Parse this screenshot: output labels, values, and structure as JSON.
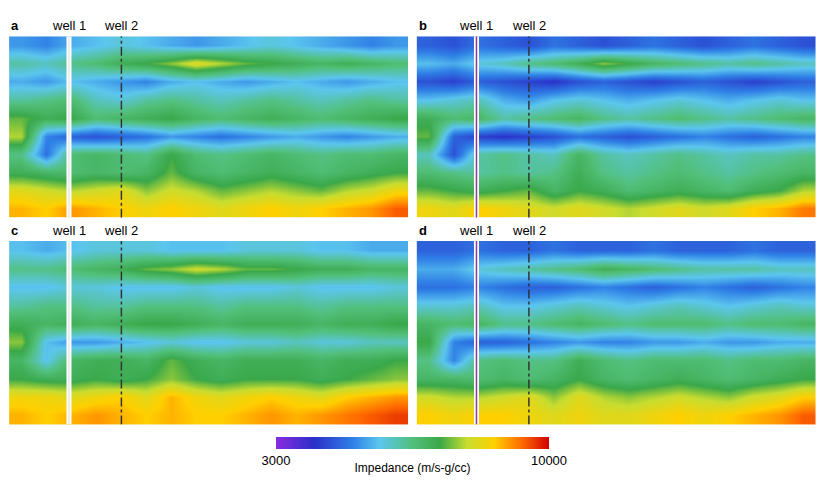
{
  "chart_data": {
    "type": "heatmap",
    "x": [
      0.5,
      1.5,
      2.5,
      3.5,
      4.5,
      5.5,
      6.5,
      7.5,
      8.5,
      9.5,
      10.5,
      11.5,
      12.5,
      13.5,
      14.5,
      15.5
    ],
    "y": [
      0.5,
      1.5,
      2.5,
      3.5,
      4.5,
      5.5,
      6.5,
      7.5,
      8.5,
      9.5
    ],
    "xlim": [
      0,
      16
    ],
    "ylim": [
      10,
      0
    ],
    "tick_labels": false,
    "wells": [
      {
        "name": "well 1",
        "x": 2.4
      },
      {
        "name": "well 2",
        "x": 4.5
      }
    ],
    "colorbar": {
      "title": "Impedance (m/s-g/cc)",
      "range": [
        3000,
        10000
      ],
      "ticks": [
        3000,
        10000
      ]
    },
    "panels": [
      {
        "label": "a",
        "z": [
          [
            5200,
            5000,
            5400,
            5600,
            5800,
            5600,
            5400,
            5200,
            5400,
            5600,
            5800,
            5600,
            5400,
            5200,
            5000,
            5200
          ],
          [
            6200,
            6000,
            6400,
            6600,
            7000,
            7200,
            7600,
            8200,
            7800,
            7400,
            7200,
            7000,
            6800,
            7000,
            6800,
            6600
          ],
          [
            5400,
            5200,
            5600,
            5400,
            5200,
            5000,
            5400,
            5600,
            5400,
            5200,
            5400,
            5600,
            5400,
            5200,
            5400,
            5600
          ],
          [
            6200,
            6400,
            6600,
            6000,
            5800,
            6200,
            6400,
            6200,
            6000,
            6200,
            6400,
            6200,
            6000,
            6200,
            6400,
            6200
          ],
          [
            7400,
            7000,
            7200,
            6600,
            6800,
            7000,
            7200,
            6800,
            6600,
            6800,
            7000,
            6800,
            6600,
            6800,
            7000,
            7200
          ],
          [
            7800,
            5000,
            4600,
            4400,
            4600,
            4800,
            5200,
            5000,
            4800,
            5000,
            5200,
            5400,
            5200,
            5000,
            5200,
            5400
          ],
          [
            6400,
            4800,
            6600,
            6800,
            6600,
            6400,
            7200,
            6600,
            6400,
            6600,
            6800,
            6600,
            6400,
            6600,
            6600,
            6800
          ],
          [
            7000,
            6800,
            6600,
            6800,
            6600,
            6800,
            7400,
            6800,
            6600,
            6800,
            7000,
            6800,
            6600,
            6800,
            7000,
            7200
          ],
          [
            8200,
            8000,
            7800,
            8000,
            8200,
            7600,
            8000,
            7800,
            7400,
            7600,
            7800,
            7600,
            7400,
            7800,
            8000,
            8400
          ],
          [
            8800,
            8600,
            9000,
            8800,
            8600,
            8400,
            8600,
            8400,
            8200,
            8400,
            8600,
            8400,
            8600,
            8800,
            9000,
            9400
          ]
        ]
      },
      {
        "label": "b",
        "z": [
          [
            4600,
            4400,
            4800,
            4600,
            4400,
            4800,
            4600,
            4400,
            4600,
            4800,
            4600,
            4400,
            4600,
            4800,
            4600,
            4400
          ],
          [
            5600,
            5400,
            5800,
            6000,
            6400,
            6600,
            7000,
            7600,
            7200,
            6800,
            6600,
            6400,
            6200,
            6400,
            6200,
            6000
          ],
          [
            4400,
            4200,
            4600,
            4400,
            4200,
            4000,
            4400,
            4600,
            4400,
            4200,
            4400,
            4600,
            4400,
            4200,
            4400,
            4600
          ],
          [
            5600,
            5800,
            6000,
            5400,
            5200,
            5600,
            5800,
            5600,
            5400,
            5600,
            5800,
            5600,
            5400,
            5600,
            5800,
            5600
          ],
          [
            7000,
            6600,
            6800,
            6200,
            6400,
            6600,
            6800,
            6400,
            6200,
            6400,
            6600,
            6400,
            6200,
            6400,
            6600,
            6800
          ],
          [
            7400,
            4600,
            4200,
            4000,
            4200,
            4400,
            4800,
            4600,
            4400,
            4600,
            4800,
            5000,
            4800,
            4600,
            4800,
            5000
          ],
          [
            6000,
            4400,
            6200,
            6400,
            6200,
            6000,
            6800,
            6200,
            6000,
            6200,
            6400,
            6200,
            6000,
            6200,
            6200,
            6400
          ],
          [
            6600,
            6400,
            6200,
            6400,
            6200,
            6400,
            7000,
            6400,
            6200,
            6400,
            6600,
            6400,
            6200,
            6400,
            6600,
            6800
          ],
          [
            7400,
            7200,
            7000,
            7200,
            7400,
            6800,
            7200,
            7000,
            6600,
            6800,
            7000,
            6800,
            6600,
            7000,
            7200,
            7800
          ],
          [
            8400,
            8200,
            8600,
            8400,
            8200,
            8000,
            8200,
            8000,
            7800,
            8000,
            8200,
            8000,
            8200,
            8600,
            8800,
            9200
          ]
        ]
      },
      {
        "label": "c",
        "z": [
          [
            5600,
            5400,
            5600,
            5800,
            5800,
            5800,
            5600,
            5600,
            5600,
            5800,
            5800,
            5800,
            5600,
            5600,
            5400,
            5400
          ],
          [
            6400,
            6400,
            6600,
            6800,
            7000,
            7400,
            7600,
            8000,
            7800,
            7400,
            7400,
            7200,
            7000,
            7000,
            6800,
            6800
          ],
          [
            5600,
            5600,
            5800,
            5800,
            5600,
            5600,
            5600,
            5800,
            5600,
            5600,
            5600,
            5800,
            5600,
            5600,
            5600,
            5800
          ],
          [
            6200,
            6400,
            6400,
            6200,
            6200,
            6400,
            6400,
            6400,
            6200,
            6400,
            6400,
            6400,
            6200,
            6400,
            6400,
            6400
          ],
          [
            7000,
            6800,
            7000,
            6800,
            7000,
            7200,
            7200,
            7000,
            6800,
            7000,
            7000,
            7000,
            6800,
            7000,
            7000,
            7200
          ],
          [
            7600,
            5600,
            5200,
            5200,
            5400,
            5600,
            5800,
            5600,
            5600,
            5800,
            5800,
            6000,
            5800,
            5800,
            6000,
            6000
          ],
          [
            6800,
            5600,
            6800,
            7000,
            7000,
            6800,
            7400,
            7000,
            6800,
            7000,
            7000,
            7000,
            6800,
            7000,
            7000,
            7200
          ],
          [
            7200,
            7000,
            7000,
            7200,
            7000,
            7200,
            7600,
            7200,
            7000,
            7200,
            7200,
            7200,
            7000,
            7200,
            7400,
            7600
          ],
          [
            8400,
            8400,
            8200,
            8400,
            8600,
            8200,
            8800,
            8400,
            8200,
            8400,
            8600,
            8400,
            8200,
            8600,
            8800,
            9000
          ],
          [
            8800,
            8600,
            8800,
            9000,
            8800,
            8600,
            8800,
            8600,
            8600,
            8800,
            9000,
            8800,
            9000,
            9200,
            9400,
            9600
          ]
        ]
      },
      {
        "label": "d",
        "z": [
          [
            4600,
            4600,
            4800,
            4600,
            4600,
            4800,
            4600,
            4600,
            4600,
            4800,
            4600,
            4600,
            4600,
            4800,
            4600,
            4600
          ],
          [
            5400,
            5400,
            5800,
            6000,
            6200,
            6400,
            6600,
            7000,
            6800,
            6600,
            6400,
            6200,
            6200,
            6200,
            6000,
            6000
          ],
          [
            4800,
            4800,
            5000,
            4800,
            4600,
            4600,
            4800,
            5000,
            4800,
            4600,
            4800,
            5000,
            4800,
            4600,
            4800,
            5000
          ],
          [
            5800,
            5800,
            6000,
            5600,
            5600,
            5800,
            6000,
            5800,
            5600,
            5800,
            6000,
            5800,
            5600,
            5800,
            6000,
            5800
          ],
          [
            6800,
            6600,
            6800,
            6400,
            6400,
            6600,
            6800,
            6600,
            6400,
            6600,
            6600,
            6600,
            6400,
            6600,
            6600,
            6800
          ],
          [
            7200,
            5000,
            4600,
            4600,
            4800,
            5000,
            5200,
            5000,
            5000,
            5200,
            5200,
            5400,
            5200,
            5200,
            5400,
            5400
          ],
          [
            6400,
            5000,
            6400,
            6600,
            6400,
            6400,
            7000,
            6600,
            6400,
            6600,
            6600,
            6600,
            6400,
            6600,
            6600,
            6800
          ],
          [
            6800,
            6800,
            6600,
            6800,
            6600,
            6800,
            7200,
            6800,
            6600,
            6800,
            7000,
            6800,
            6600,
            6800,
            7000,
            7200
          ],
          [
            8000,
            7800,
            7800,
            8000,
            8200,
            7600,
            8200,
            7800,
            7600,
            7800,
            8000,
            7800,
            7600,
            8000,
            8200,
            8600
          ],
          [
            8600,
            8400,
            8600,
            8600,
            8400,
            8200,
            8400,
            8200,
            8200,
            8400,
            8600,
            8400,
            8600,
            8800,
            9000,
            9400
          ]
        ]
      }
    ]
  }
}
